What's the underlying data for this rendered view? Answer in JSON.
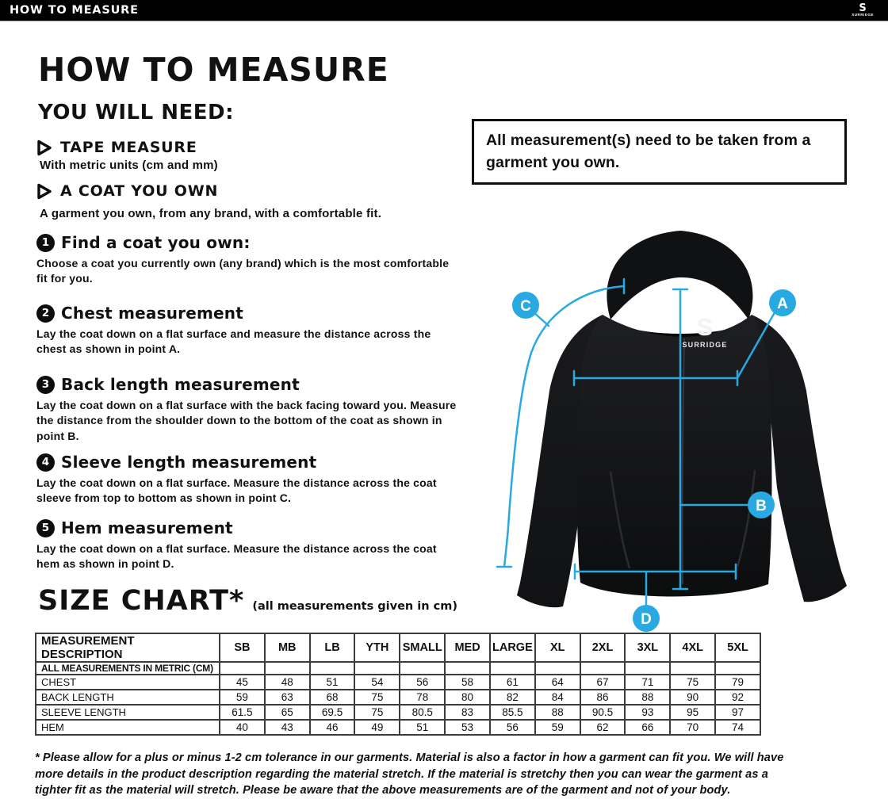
{
  "top_bar": {
    "title": "HOW TO MEASURE",
    "brand": "SURRIDGE",
    "logo_letter": "S"
  },
  "header": {
    "title": "HOW TO MEASURE",
    "subtitle": "YOU WILL NEED:"
  },
  "supplies": [
    {
      "name": "TAPE MEASURE",
      "desc": "With metric units (cm and mm)"
    },
    {
      "name": "A COAT YOU OWN",
      "desc": "A garment you own, from any brand, with a comfortable fit."
    }
  ],
  "steps": [
    {
      "num": "1",
      "title": "Find a coat you own:",
      "desc": "Choose a coat you currently own (any brand) which is the most comfortable fit for you."
    },
    {
      "num": "2",
      "title": "Chest measurement",
      "desc": "Lay the coat down on a flat surface and measure the distance across the chest as shown in point A."
    },
    {
      "num": "3",
      "title": "Back length measurement",
      "desc": "Lay the coat down on a flat surface with the back facing toward you. Measure the distance from the shoulder down to the bottom of the coat as shown in point B."
    },
    {
      "num": "4",
      "title": "Sleeve length measurement",
      "desc": "Lay the coat down on a flat surface. Measure the distance across the coat sleeve from top to bottom as shown in point C."
    },
    {
      "num": "5",
      "title": "Hem measurement",
      "desc": "Lay the coat down on a flat surface. Measure the distance across the coat hem as shown in point D."
    }
  ],
  "note_box": {
    "text": "All measurement(s) need to be taken from a garment you own."
  },
  "diagram": {
    "points": [
      "A",
      "B",
      "C",
      "D"
    ],
    "accent_color": "#29A9E1",
    "garment_logo": "SURRIDGE",
    "garment_logo_letter": "S"
  },
  "size_chart": {
    "title": "SIZE CHART*",
    "subtitle": "(all measurements given in cm)",
    "columns": [
      "MEASUREMENT DESCRIPTION",
      "SB",
      "MB",
      "LB",
      "YTH",
      "SMALL",
      "MED",
      "LARGE",
      "XL",
      "2XL",
      "3XL",
      "4XL",
      "5XL"
    ],
    "unit_row": "ALL MEASUREMENTS IN METRIC (CM)",
    "rows": [
      {
        "label": "CHEST",
        "values": [
          "45",
          "48",
          "51",
          "54",
          "56",
          "58",
          "61",
          "64",
          "67",
          "71",
          "75",
          "79"
        ]
      },
      {
        "label": "BACK LENGTH",
        "values": [
          "59",
          "63",
          "68",
          "75",
          "78",
          "80",
          "82",
          "84",
          "86",
          "88",
          "90",
          "92"
        ]
      },
      {
        "label": "SLEEVE LENGTH",
        "values": [
          "61.5",
          "65",
          "69.5",
          "75",
          "80.5",
          "83",
          "85.5",
          "88",
          "90.5",
          "93",
          "95",
          "97"
        ]
      },
      {
        "label": "HEM",
        "values": [
          "40",
          "43",
          "46",
          "49",
          "51",
          "53",
          "56",
          "59",
          "62",
          "66",
          "70",
          "74"
        ]
      }
    ]
  },
  "footnote": {
    "lines": [
      "* Please allow for a plus or minus 1-2 cm tolerance in our garments. Material is also a factor in how a garment can fit you. We will have",
      "more details in the product description regarding the material stretch.  If the material is stretchy then you can wear the garment as a",
      "tighter fit as the material will stretch.  Please be aware that the above measurements are of the garment and not of your body."
    ]
  }
}
